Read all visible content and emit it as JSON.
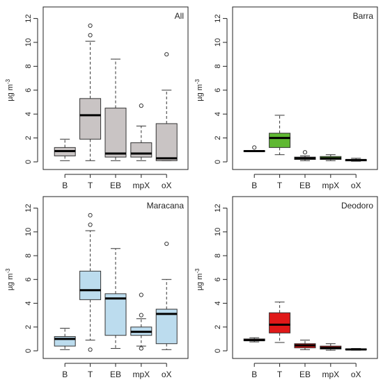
{
  "ylabel_base": "µg m",
  "ylabel_exp": "-3",
  "colors": {
    "All": "#c9c4c4",
    "Barra": "#5fb832",
    "Maracana": "#bcdcee",
    "Deodoro": "#e01818"
  },
  "chart_data": [
    {
      "type": "boxplot",
      "panel_label": "All",
      "categories": [
        "B",
        "T",
        "EB",
        "mpX",
        "oX"
      ],
      "ylim": [
        0,
        12.5
      ],
      "yticks": [
        0,
        2,
        4,
        6,
        8,
        10,
        12
      ],
      "ylabel": "µg m-3",
      "boxes": [
        {
          "min": 0.1,
          "q1": 0.5,
          "median": 0.9,
          "q3": 1.2,
          "max": 1.9,
          "outliers": []
        },
        {
          "min": 0.1,
          "q1": 1.9,
          "median": 3.9,
          "q3": 5.3,
          "max": 10.1,
          "outliers": [
            10.6,
            11.4
          ]
        },
        {
          "min": 0.1,
          "q1": 0.4,
          "median": 0.7,
          "q3": 4.5,
          "max": 8.6,
          "outliers": []
        },
        {
          "min": 0.1,
          "q1": 0.4,
          "median": 0.7,
          "q3": 1.6,
          "max": 3.0,
          "outliers": [
            4.7
          ]
        },
        {
          "min": 0.1,
          "q1": 0.1,
          "median": 0.3,
          "q3": 3.2,
          "max": 6.0,
          "outliers": [
            9.0
          ]
        }
      ]
    },
    {
      "type": "boxplot",
      "panel_label": "Barra",
      "categories": [
        "B",
        "T",
        "EB",
        "mpX",
        "oX"
      ],
      "ylim": [
        0,
        12.5
      ],
      "yticks": [
        0,
        2,
        4,
        6,
        8,
        10,
        12
      ],
      "ylabel": "µg m-3",
      "boxes": [
        {
          "min": 0.85,
          "q1": 0.85,
          "median": 0.9,
          "q3": 0.95,
          "max": 0.95,
          "outliers": [
            1.2
          ]
        },
        {
          "min": 0.6,
          "q1": 1.2,
          "median": 2.0,
          "q3": 2.4,
          "max": 3.9,
          "outliers": []
        },
        {
          "min": 0.1,
          "q1": 0.2,
          "median": 0.3,
          "q3": 0.4,
          "max": 0.5,
          "outliers": [
            0.8
          ]
        },
        {
          "min": 0.1,
          "q1": 0.2,
          "median": 0.3,
          "q3": 0.45,
          "max": 0.6,
          "outliers": []
        },
        {
          "min": 0.05,
          "q1": 0.08,
          "median": 0.15,
          "q3": 0.2,
          "max": 0.3,
          "outliers": []
        }
      ]
    },
    {
      "type": "boxplot",
      "panel_label": "Maracana",
      "categories": [
        "B",
        "T",
        "EB",
        "mpX",
        "oX"
      ],
      "ylim": [
        0,
        12.5
      ],
      "yticks": [
        0,
        2,
        4,
        6,
        8,
        10,
        12
      ],
      "ylabel": "µg m-3",
      "boxes": [
        {
          "min": 0.1,
          "q1": 0.4,
          "median": 1.0,
          "q3": 1.2,
          "max": 1.9,
          "outliers": []
        },
        {
          "min": 0.9,
          "q1": 4.3,
          "median": 5.1,
          "q3": 6.7,
          "max": 10.1,
          "outliers": [
            10.6,
            11.4,
            0.1
          ]
        },
        {
          "min": 0.2,
          "q1": 1.3,
          "median": 4.4,
          "q3": 4.8,
          "max": 8.6,
          "outliers": []
        },
        {
          "min": 0.4,
          "q1": 1.3,
          "median": 1.6,
          "q3": 2.0,
          "max": 2.7,
          "outliers": [
            4.7,
            3.0,
            0.2
          ]
        },
        {
          "min": 0.1,
          "q1": 0.6,
          "median": 3.1,
          "q3": 3.5,
          "max": 6.0,
          "outliers": [
            9.0
          ]
        }
      ]
    },
    {
      "type": "boxplot",
      "panel_label": "Deodoro",
      "categories": [
        "B",
        "T",
        "EB",
        "mpX",
        "oX"
      ],
      "ylim": [
        0,
        12.5
      ],
      "yticks": [
        0,
        2,
        4,
        6,
        8,
        10,
        12
      ],
      "ylabel": "µg m-3",
      "boxes": [
        {
          "min": 0.75,
          "q1": 0.85,
          "median": 0.9,
          "q3": 1.0,
          "max": 1.1,
          "outliers": []
        },
        {
          "min": 0.7,
          "q1": 1.5,
          "median": 2.2,
          "q3": 3.2,
          "max": 4.1,
          "outliers": []
        },
        {
          "min": 0.1,
          "q1": 0.25,
          "median": 0.45,
          "q3": 0.6,
          "max": 0.9,
          "outliers": []
        },
        {
          "min": 0.05,
          "q1": 0.15,
          "median": 0.25,
          "q3": 0.4,
          "max": 0.6,
          "outliers": []
        },
        {
          "min": 0.05,
          "q1": 0.08,
          "median": 0.12,
          "q3": 0.17,
          "max": 0.2,
          "outliers": []
        }
      ]
    }
  ]
}
